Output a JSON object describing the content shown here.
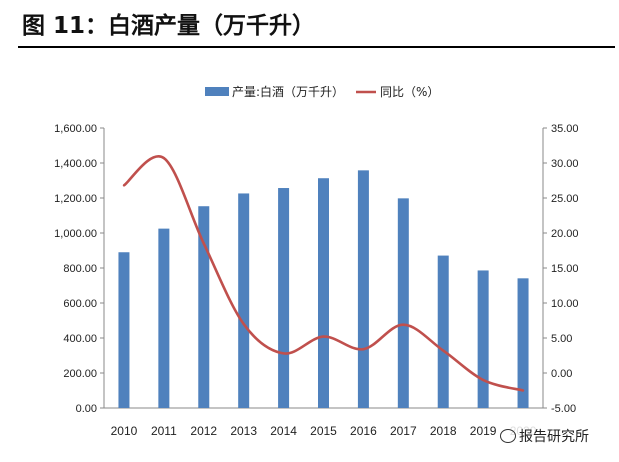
{
  "figure_title": "图 11：白酒产量（万千升）",
  "watermark": "报告研究所",
  "colors": {
    "bar": "#4f81bd",
    "line": "#c0504d",
    "axis": "#888888",
    "text": "#222222"
  },
  "chart_data": {
    "type": "bar",
    "categories": [
      "2010",
      "2011",
      "2012",
      "2013",
      "2014",
      "2015",
      "2016",
      "2017",
      "2018",
      "2019",
      "2020"
    ],
    "tick_labels": [
      "2010",
      "2011",
      "2012",
      "2013",
      "2014",
      "2015",
      "2016",
      "2017",
      "2018",
      "2019",
      "2020"
    ],
    "legend_position": "top-center",
    "grid": false,
    "series": [
      {
        "name": "产量:白酒（万千升）",
        "type": "bar",
        "axis": "left",
        "values": [
          890,
          1025,
          1153,
          1226,
          1257,
          1313,
          1358,
          1198,
          871,
          786,
          741
        ]
      },
      {
        "name": "同比（%）",
        "type": "line",
        "smooth": true,
        "axis": "right",
        "values": [
          26.8,
          30.7,
          18.5,
          7.0,
          2.8,
          5.2,
          3.4,
          6.9,
          3.2,
          -1.0,
          -2.5
        ]
      }
    ],
    "left_axis": {
      "ylim": [
        0,
        1600
      ],
      "ticks": [
        "0.00",
        "200.00",
        "400.00",
        "600.00",
        "800.00",
        "1,000.00",
        "1,200.00",
        "1,400.00",
        "1,600.00"
      ]
    },
    "right_axis": {
      "ylim": [
        -5,
        35
      ],
      "ticks": [
        "-5.00",
        "0.00",
        "5.00",
        "10.00",
        "15.00",
        "20.00",
        "25.00",
        "30.00",
        "35.00"
      ]
    }
  }
}
